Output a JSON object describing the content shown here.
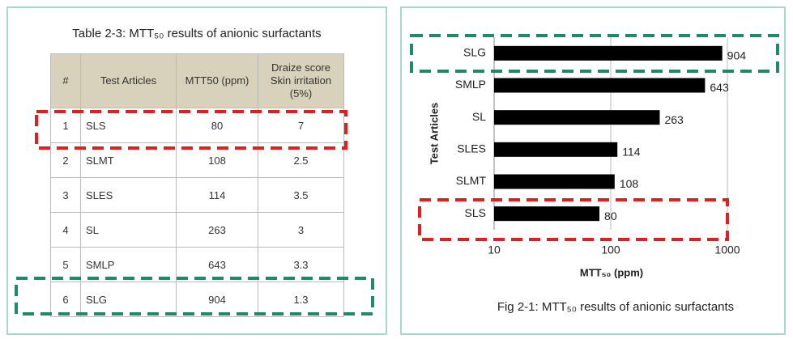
{
  "table": {
    "title": "Table 2-3: MTT₅₀ results of anionic surfactants",
    "columns": [
      "#",
      "Test Articles",
      "MTT50 (ppm)",
      "Draize score Skin irritation (5%)"
    ],
    "rows": [
      [
        1,
        "SLS",
        80,
        7
      ],
      [
        2,
        "SLMT",
        108,
        2.5
      ],
      [
        3,
        "SLES",
        114,
        3.5
      ],
      [
        4,
        "SL",
        263,
        3
      ],
      [
        5,
        "SMLP",
        643,
        3.3
      ],
      [
        6,
        "SLG",
        904,
        1.3
      ]
    ]
  },
  "chart_data": {
    "type": "hbar",
    "caption": "Fig 2-1: MTT₅₀ results of anionic surfactants",
    "x_label": "MTT₅₀ (ppm)",
    "y_label": "Test Articles",
    "categories": [
      "SLG",
      "SMLP",
      "SL",
      "SLES",
      "SLMT",
      "SLS"
    ],
    "values": [
      904,
      643,
      263,
      114,
      108,
      80
    ],
    "color": "#000000",
    "xscale": "log",
    "xlim": [
      10,
      1000
    ],
    "xticks": [
      10,
      100,
      1000
    ],
    "grid": true
  }
}
